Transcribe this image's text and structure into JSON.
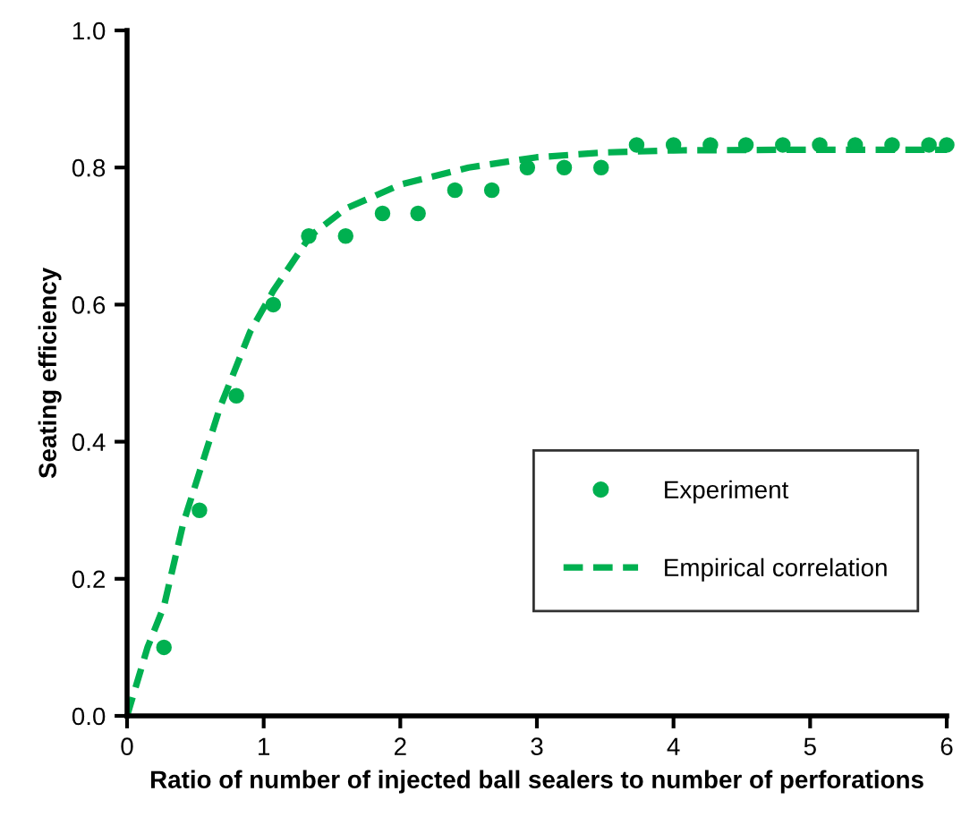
{
  "chart_data": {
    "type": "scatter",
    "xlabel": "Ratio of number of injected ball sealers to number of perforations",
    "ylabel": "Seating efficiency",
    "xlim": [
      0,
      6
    ],
    "ylim": [
      0,
      1.0
    ],
    "xticks": [
      0,
      1,
      2,
      3,
      4,
      5,
      6
    ],
    "yticks": [
      {
        "value": 0,
        "label": "0.0"
      },
      0.2,
      0.4,
      0.6,
      0.8,
      {
        "value": 1,
        "label": "1.0"
      }
    ],
    "grid": false,
    "legend": "right",
    "series": [
      {
        "name": "Experiment",
        "marker": "circle",
        "color": "#00b050",
        "x": [
          0.27,
          0.53,
          0.8,
          1.07,
          1.33,
          1.6,
          1.87,
          2.13,
          2.4,
          2.67,
          2.93,
          3.2,
          3.47,
          3.73,
          4.0,
          4.27,
          4.53,
          4.8,
          5.07,
          5.33,
          5.6,
          5.87,
          6.0
        ],
        "values": [
          0.1,
          0.3,
          0.467,
          0.6,
          0.7,
          0.7,
          0.733,
          0.733,
          0.767,
          0.767,
          0.8,
          0.8,
          0.8,
          0.833,
          0.833,
          0.833,
          0.833,
          0.833,
          0.833,
          0.833,
          0.833,
          0.833,
          0.833
        ]
      },
      {
        "name": "Empirical correlation",
        "type": "line",
        "line_style": "dashed",
        "marker": "none",
        "color": "#00b050",
        "x": [
          0,
          0.15,
          0.27,
          0.41,
          0.68,
          0.9,
          1.07,
          1.34,
          1.6,
          2,
          2.5,
          3,
          3.5,
          4,
          5,
          6
        ],
        "values": [
          0,
          0.1,
          0.16,
          0.28,
          0.45,
          0.56,
          0.62,
          0.7,
          0.74,
          0.775,
          0.8,
          0.815,
          0.822,
          0.825,
          0.826,
          0.826
        ]
      }
    ]
  }
}
